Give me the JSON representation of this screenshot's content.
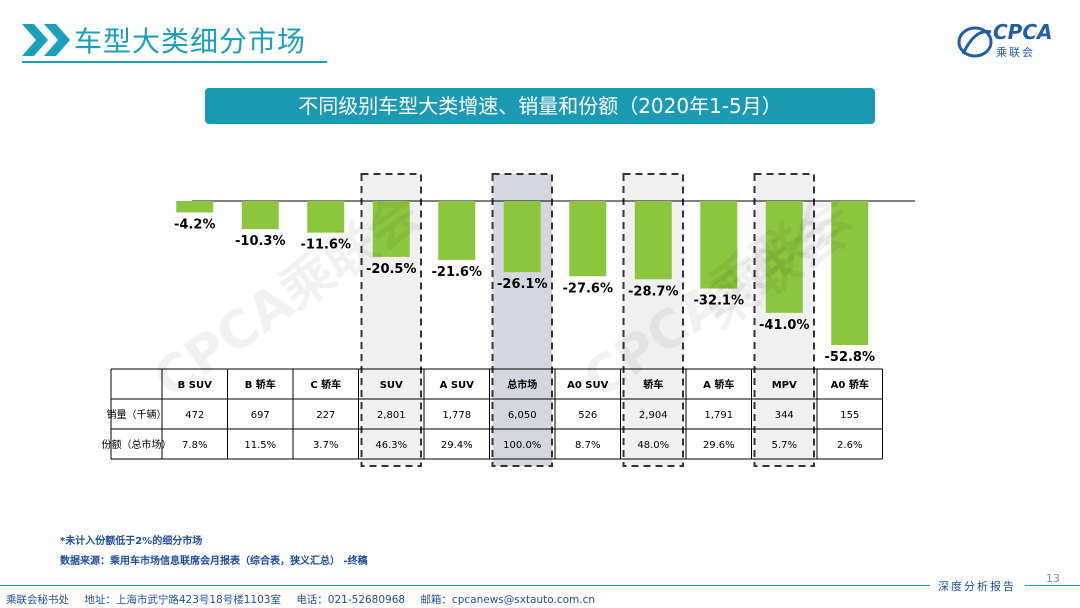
{
  "header": {
    "title": "车型大类细分市场",
    "logo_text": "CPCA",
    "logo_sub": "乘联会"
  },
  "banner": "不同级别车型大类增速、销量和份额（2020年1-5月）",
  "chart_data": {
    "type": "bar",
    "title": "不同级别车型大类增速、销量和份额（2020年1-5月）",
    "categories": [
      "B SUV",
      "B 轿车",
      "C 轿车",
      "SUV",
      "A SUV",
      "总市场",
      "A0 SUV",
      "轿车",
      "A 轿车",
      "MPV",
      "A0 轿车"
    ],
    "values": [
      -4.2,
      -10.3,
      -11.6,
      -20.5,
      -21.6,
      -26.1,
      -27.6,
      -28.7,
      -32.1,
      -41.0,
      -52.8
    ],
    "value_labels": [
      "-4.2%",
      "-10.3%",
      "-11.6%",
      "-20.5%",
      "-21.6%",
      "-26.1%",
      "-27.6%",
      "-28.7%",
      "-32.1%",
      "-41.0%",
      "-52.8%"
    ],
    "ylim": [
      -55,
      0
    ],
    "highlight_aggregates": [
      "SUV",
      "总市场",
      "轿车",
      "MPV"
    ],
    "bar_color": "#8cc63f",
    "table": {
      "rows": [
        {
          "label": "销量（千辆）",
          "values": [
            "472",
            "697",
            "227",
            "2,801",
            "1,778",
            "6,050",
            "526",
            "2,904",
            "1,791",
            "344",
            "155"
          ]
        },
        {
          "label": "份额（总市场）",
          "values": [
            "7.8%",
            "11.5%",
            "3.7%",
            "46.3%",
            "29.4%",
            "100.0%",
            "8.7%",
            "48.0%",
            "29.6%",
            "5.7%",
            "2.6%"
          ]
        }
      ]
    }
  },
  "watermarks": [
    "CPCA乘联会",
    "CPCA乘联会",
    "乘联会"
  ],
  "footnotes": {
    "note": "*未计入份额低于2%的细分市场",
    "source": "数据来源：乘用车市场信息联席会月报表（综合表，狭义汇总）  -终稿"
  },
  "footer": {
    "org": "乘联会秘书处",
    "address": "地址：上海市武宁路423号18号楼1103室",
    "phone": "电话：021-52680968",
    "email": "邮箱：cpcanews@sxtauto.com.cn",
    "report": "深度分析报告",
    "page": "13"
  }
}
